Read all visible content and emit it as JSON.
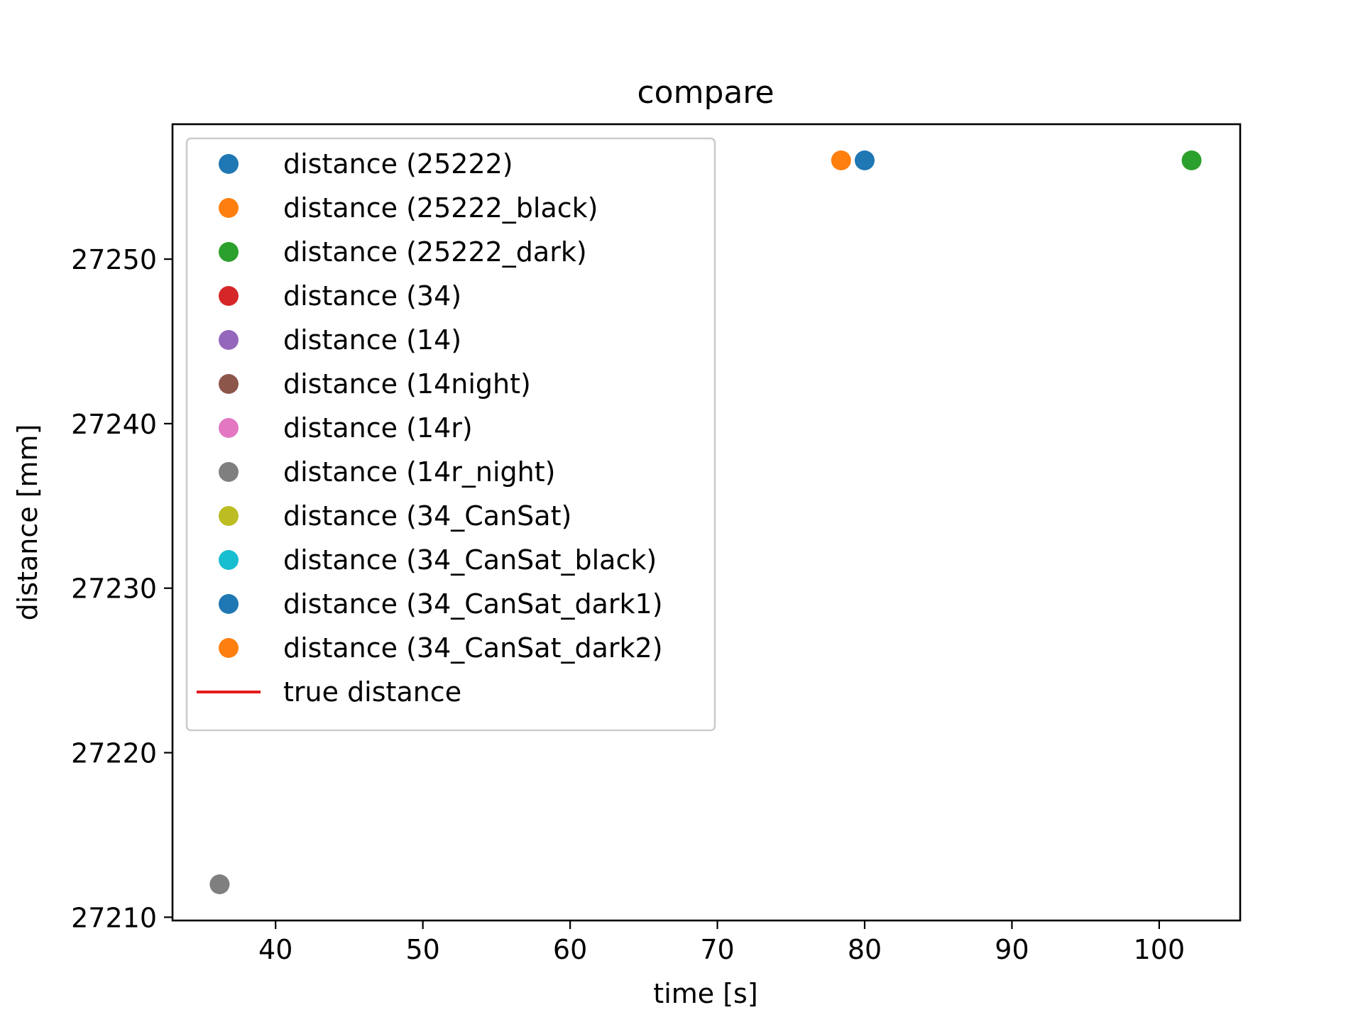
{
  "chart_data": {
    "type": "scatter",
    "title": "compare",
    "xlabel": "time [s]",
    "ylabel": "distance [mm]",
    "xlim": [
      33,
      105.5
    ],
    "ylim": [
      27209.8,
      27258.2
    ],
    "xticks": [
      40,
      50,
      60,
      70,
      80,
      90,
      100
    ],
    "yticks": [
      27210,
      27220,
      27230,
      27240,
      27250
    ],
    "grid": false,
    "legend_position": "upper-left",
    "series": [
      {
        "name": "distance (25222)",
        "color": "#1f77b4",
        "marker": "circle",
        "points": [
          {
            "x": 80.0,
            "y": 27256
          }
        ]
      },
      {
        "name": "distance (25222_black)",
        "color": "#ff7f0e",
        "marker": "circle",
        "points": [
          {
            "x": 78.4,
            "y": 27256
          }
        ]
      },
      {
        "name": "distance (25222_dark)",
        "color": "#2ca02c",
        "marker": "circle",
        "points": [
          {
            "x": 102.2,
            "y": 27256
          }
        ]
      },
      {
        "name": "distance (34)",
        "color": "#d62728",
        "marker": "circle",
        "points": []
      },
      {
        "name": "distance (14)",
        "color": "#9467bd",
        "marker": "circle",
        "points": []
      },
      {
        "name": "distance (14night)",
        "color": "#8c564b",
        "marker": "circle",
        "points": []
      },
      {
        "name": "distance (14r)",
        "color": "#e377c2",
        "marker": "circle",
        "points": []
      },
      {
        "name": "distance (14r_night)",
        "color": "#7f7f7f",
        "marker": "circle",
        "points": [
          {
            "x": 36.2,
            "y": 27212
          }
        ]
      },
      {
        "name": "distance (34_CanSat)",
        "color": "#bcbd22",
        "marker": "circle",
        "points": []
      },
      {
        "name": "distance (34_CanSat_black)",
        "color": "#17becf",
        "marker": "circle",
        "points": []
      },
      {
        "name": "distance (34_CanSat_dark1)",
        "color": "#1f77b4",
        "marker": "circle",
        "points": []
      },
      {
        "name": "distance (34_CanSat_dark2)",
        "color": "#ff7f0e",
        "marker": "circle",
        "points": []
      },
      {
        "name": "true distance",
        "color": "#e41a1c",
        "marker": "line",
        "points": []
      }
    ]
  }
}
